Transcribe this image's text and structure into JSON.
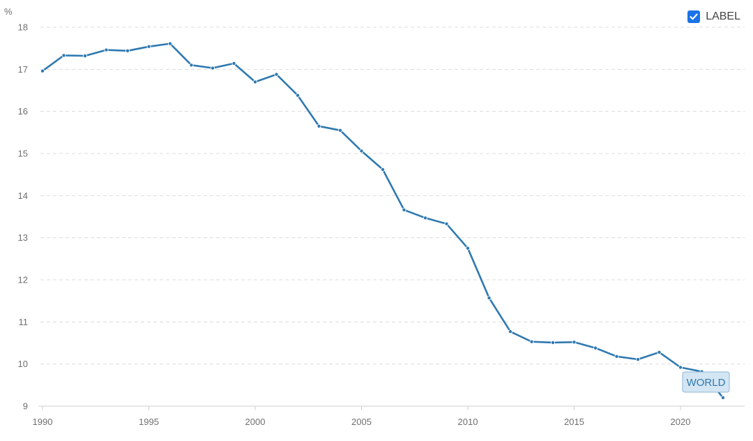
{
  "legend": {
    "label": "LABEL",
    "checked": true
  },
  "chart_data": {
    "type": "line",
    "unit_label": "%",
    "x": [
      1990,
      1991,
      1992,
      1993,
      1994,
      1995,
      1996,
      1997,
      1998,
      1999,
      2000,
      2001,
      2002,
      2003,
      2004,
      2005,
      2006,
      2007,
      2008,
      2009,
      2010,
      2011,
      2012,
      2013,
      2014,
      2015,
      2016,
      2017,
      2018,
      2019,
      2020,
      2021,
      2022
    ],
    "series": [
      {
        "name": "WORLD",
        "color": "#2f79b0",
        "values": [
          16.96,
          17.33,
          17.32,
          17.46,
          17.44,
          17.54,
          17.61,
          17.1,
          17.03,
          17.14,
          16.7,
          16.88,
          16.38,
          15.65,
          15.55,
          15.06,
          14.62,
          13.66,
          13.47,
          13.33,
          12.75,
          11.57,
          10.77,
          10.53,
          10.51,
          10.52,
          10.38,
          10.18,
          10.11,
          10.28,
          9.92,
          9.82,
          9.2
        ]
      }
    ],
    "xticks": [
      1990,
      1995,
      2000,
      2005,
      2010,
      2015,
      2020
    ],
    "yticks": [
      9,
      10,
      11,
      12,
      13,
      14,
      15,
      16,
      17,
      18
    ],
    "xlim": [
      1990,
      2022
    ],
    "ylim": [
      9,
      18
    ],
    "grid": true,
    "legend_position": "top-right",
    "series_tag": "WORLD"
  }
}
